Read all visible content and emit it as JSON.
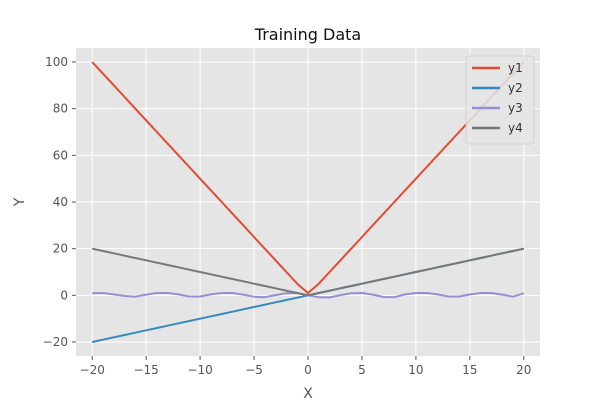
{
  "chart_data": {
    "type": "line",
    "title": "Training Data",
    "xlabel": "X",
    "ylabel": "Y",
    "xlim": [
      -21.5,
      21.5
    ],
    "ylim": [
      -26,
      106
    ],
    "grid": true,
    "legend_position": "top-right",
    "x_ticks": [
      -20,
      -15,
      -10,
      -5,
      0,
      5,
      10,
      15,
      20
    ],
    "y_ticks": [
      -20,
      0,
      20,
      40,
      60,
      80,
      100
    ],
    "x": [
      -20,
      -19,
      -18,
      -17,
      -16,
      -15,
      -14,
      -13,
      -12,
      -11,
      -10,
      -9,
      -8,
      -7,
      -6,
      -5,
      -4,
      -3,
      -2,
      -1,
      0,
      1,
      2,
      3,
      4,
      5,
      6,
      7,
      8,
      9,
      10,
      11,
      12,
      13,
      14,
      15,
      16,
      17,
      18,
      19,
      20
    ],
    "series": [
      {
        "name": "y1",
        "color": "#E24A33",
        "values": [
          100,
          95,
          90,
          85,
          80,
          75,
          70,
          65,
          60,
          55,
          50,
          45,
          40,
          35,
          30,
          25,
          20,
          15,
          10,
          5,
          1,
          5,
          10,
          15,
          20,
          25,
          30,
          35,
          40,
          45,
          50,
          55,
          60,
          65,
          70,
          75,
          80,
          85,
          90,
          95,
          100
        ]
      },
      {
        "name": "y2",
        "color": "#348ABD",
        "values": [
          -20,
          -19,
          -18,
          -17,
          -16,
          -15,
          -14,
          -13,
          -12,
          -11,
          -10,
          -9,
          -8,
          -7,
          -6,
          -5,
          -4,
          -3,
          -2,
          -1,
          0,
          1,
          2,
          3,
          4,
          5,
          6,
          7,
          8,
          9,
          10,
          11,
          12,
          13,
          14,
          15,
          16,
          17,
          18,
          19,
          20
        ]
      },
      {
        "name": "y3",
        "color": "#988ED5",
        "values": [
          0.9,
          1.0,
          0.4,
          -0.3,
          -0.6,
          0.3,
          1.0,
          1.0,
          0.4,
          -0.5,
          -0.5,
          0.4,
          1.0,
          1.0,
          0.3,
          -0.6,
          -0.8,
          0.1,
          0.9,
          1.0,
          0.0,
          -0.8,
          -0.9,
          0.1,
          0.9,
          1.0,
          0.3,
          -0.7,
          -0.8,
          0.4,
          1.0,
          1.0,
          0.4,
          -0.5,
          -0.5,
          0.4,
          1.0,
          1.0,
          0.3,
          -0.6,
          0.9
        ]
      },
      {
        "name": "y4",
        "color": "#777777",
        "values": [
          20,
          19,
          18,
          17,
          16,
          15,
          14,
          13,
          12,
          11,
          10,
          9,
          8,
          7,
          6,
          5,
          4,
          3,
          2,
          1,
          0,
          1,
          2,
          3,
          4,
          5,
          6,
          7,
          8,
          9,
          10,
          11,
          12,
          13,
          14,
          15,
          16,
          17,
          18,
          19,
          20
        ]
      }
    ]
  }
}
